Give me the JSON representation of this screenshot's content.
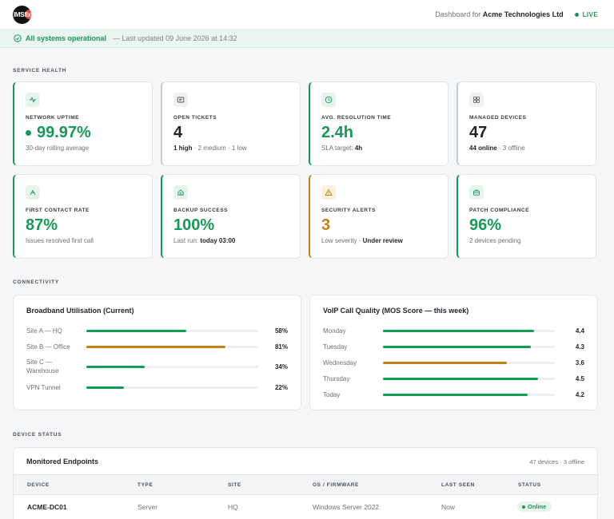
{
  "header": {
    "logo_text": "IMSfix",
    "dashboard_prefix": "Dashboard for",
    "company": "Acme Technologies Ltd",
    "live": "LIVE"
  },
  "status": {
    "text": "All systems operational",
    "updated": "— Last updated 09 June 2026 at 14:32"
  },
  "sections": {
    "service_health": "SERVICE HEALTH",
    "connectivity": "CONNECTIVITY",
    "device_status": "DEVICE STATUS"
  },
  "kpis": [
    {
      "label": "NETWORK UPTIME",
      "value": "99.97%",
      "sub": "30-day rolling average",
      "icon": "pulse-icon"
    },
    {
      "label": "OPEN TICKETS",
      "value": "4",
      "sub_bold": "1 high",
      "sub": " · 2 medium · 1 low",
      "icon": "ticket-icon"
    },
    {
      "label": "AVG. RESOLUTION TIME",
      "value": "2.4h",
      "sub": "SLA target: ",
      "sub_bold": "4h",
      "icon": "clock-icon"
    },
    {
      "label": "MANAGED DEVICES",
      "value": "47",
      "sub_bold": "44 online",
      "sub": " · 3 offline",
      "icon": "grid-icon"
    },
    {
      "label": "FIRST CONTACT RATE",
      "value": "87%",
      "sub": "Issues resolved first call",
      "icon": "user-icon"
    },
    {
      "label": "BACKUP SUCCESS",
      "value": "100%",
      "sub": "Last run: ",
      "sub_bold": "today 03:00",
      "icon": "home-icon"
    },
    {
      "label": "SECURITY ALERTS",
      "value": "3",
      "sub": "Low severity · ",
      "sub_bold": "Under review",
      "icon": "warning-icon"
    },
    {
      "label": "PATCH COMPLIANCE",
      "value": "96%",
      "sub": "2 devices pending",
      "icon": "briefcase-icon"
    }
  ],
  "broadband": {
    "title": "Broadband Utilisation (Current)",
    "rows": [
      {
        "label": "Site A — HQ",
        "value": "58%",
        "pct": 58,
        "color": "green"
      },
      {
        "label": "Site B — Office",
        "value": "81%",
        "pct": 81,
        "color": "amber"
      },
      {
        "label": "Site C — Warehouse",
        "value": "34%",
        "pct": 34,
        "color": "green"
      },
      {
        "label": "VPN Tunnel",
        "value": "22%",
        "pct": 22,
        "color": "green"
      }
    ]
  },
  "voip": {
    "title": "VoIP Call Quality (MOS Score — this week)",
    "rows": [
      {
        "label": "Monday",
        "value": "4.4",
        "score": 4.4,
        "color": "green"
      },
      {
        "label": "Tuesday",
        "value": "4.3",
        "score": 4.3,
        "color": "green"
      },
      {
        "label": "Wednesday",
        "value": "3.6",
        "score": 3.6,
        "color": "amber"
      },
      {
        "label": "Thursday",
        "value": "4.5",
        "score": 4.5,
        "color": "green"
      },
      {
        "label": "Today",
        "value": "4.2",
        "score": 4.2,
        "color": "green"
      }
    ]
  },
  "devices": {
    "title": "Monitored Endpoints",
    "summary": "47 devices · 3 offline",
    "columns": [
      "DEVICE",
      "TYPE",
      "SITE",
      "OS / FIRMWARE",
      "LAST SEEN",
      "STATUS"
    ],
    "rows": [
      {
        "device": "ACME-DC01",
        "type": "Server",
        "site": "HQ",
        "os": "Windows Server 2022",
        "last_seen": "Now",
        "status": "Online"
      }
    ]
  },
  "colors": {
    "green": "#159957",
    "amber": "#c47f14"
  }
}
